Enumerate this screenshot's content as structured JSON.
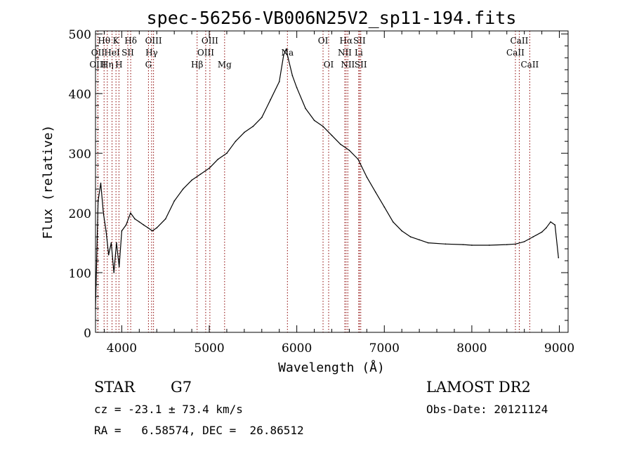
{
  "chart_data": {
    "type": "line",
    "title": "spec-56256-VB006N25V2_sp11-194.fits",
    "xlabel": "Wavelength (Å)",
    "ylabel": "Flux (relative)",
    "xlim": [
      3700,
      9100
    ],
    "ylim": [
      0,
      505
    ],
    "x_ticks": [
      4000,
      5000,
      6000,
      7000,
      8000,
      9000
    ],
    "y_ticks": [
      0,
      100,
      200,
      300,
      400,
      500
    ],
    "grid": false,
    "line_color": "#000000",
    "marker_color": "#8b0000",
    "series": [
      {
        "x": [
          3700,
          3730,
          3760,
          3790,
          3820,
          3850,
          3880,
          3910,
          3940,
          3970,
          4000,
          4050,
          4100,
          4150,
          4200,
          4250,
          4300,
          4350,
          4400,
          4500,
          4600,
          4700,
          4800,
          4900,
          5000,
          5100,
          5200,
          5300,
          5400,
          5500,
          5600,
          5700,
          5800,
          5850,
          5880,
          5900,
          5950,
          6000,
          6100,
          6200,
          6300,
          6400,
          6500,
          6600,
          6700,
          6800,
          6900,
          7000,
          7100,
          7200,
          7300,
          7400,
          7500,
          7700,
          7900,
          8000,
          8200,
          8400,
          8500,
          8600,
          8700,
          8800,
          8850,
          8900,
          8950,
          8990
        ],
        "values": [
          40,
          220,
          250,
          200,
          170,
          130,
          150,
          100,
          150,
          110,
          170,
          180,
          200,
          190,
          185,
          180,
          175,
          170,
          175,
          190,
          220,
          240,
          255,
          265,
          275,
          290,
          300,
          320,
          335,
          345,
          360,
          390,
          420,
          465,
          475,
          460,
          430,
          410,
          375,
          355,
          345,
          330,
          315,
          305,
          290,
          260,
          235,
          210,
          185,
          170,
          160,
          155,
          150,
          148,
          147,
          146,
          146,
          147,
          148,
          152,
          160,
          168,
          175,
          185,
          180,
          125
        ]
      }
    ],
    "markers": [
      {
        "label": "Hθ",
        "x": 3798,
        "row": 1
      },
      {
        "label": "OII",
        "x": 3727,
        "row": 2
      },
      {
        "label": "OIII",
        "x": 3727,
        "row": 3
      },
      {
        "label": "K",
        "x": 3934,
        "row": 1
      },
      {
        "label": "HeI",
        "x": 3889,
        "row": 2
      },
      {
        "label": "Hη",
        "x": 3835,
        "row": 3
      },
      {
        "label": "Hδ",
        "x": 4102,
        "row": 1
      },
      {
        "label": "SII",
        "x": 4069,
        "row": 2
      },
      {
        "label": "H",
        "x": 3968,
        "row": 3
      },
      {
        "label": "OIII",
        "x": 4363,
        "row": 1
      },
      {
        "label": "Hγ",
        "x": 4341,
        "row": 2
      },
      {
        "label": "G",
        "x": 4305,
        "row": 3
      },
      {
        "label": "OIII",
        "x": 5007,
        "row": 1
      },
      {
        "label": "OIII",
        "x": 4959,
        "row": 2
      },
      {
        "label": "Hβ",
        "x": 4861,
        "row": 3
      },
      {
        "label": "Mg",
        "x": 5175,
        "row": 3
      },
      {
        "label": "Na",
        "x": 5893,
        "row": 2
      },
      {
        "label": "OI",
        "x": 6300,
        "row": 1
      },
      {
        "label": "OI",
        "x": 6364,
        "row": 3
      },
      {
        "label": "Hα",
        "x": 6563,
        "row": 1
      },
      {
        "label": "SII",
        "x": 6716,
        "row": 1
      },
      {
        "label": "NII",
        "x": 6548,
        "row": 2
      },
      {
        "label": "Li",
        "x": 6708,
        "row": 2
      },
      {
        "label": "NII",
        "x": 6583,
        "row": 3
      },
      {
        "label": "SII",
        "x": 6731,
        "row": 3
      },
      {
        "label": "CaII",
        "x": 8542,
        "row": 1
      },
      {
        "label": "CaII",
        "x": 8498,
        "row": 2
      },
      {
        "label": "CaII",
        "x": 8662,
        "row": 3
      }
    ]
  },
  "footer": {
    "object_class": "STAR",
    "subclass": "G7",
    "survey": "LAMOST DR2",
    "cz_line": "cz = -23.1 ± 73.4 km/s",
    "obs_date": "Obs-Date: 20121124",
    "coords_line": "RA =   6.58574, DEC =  26.86512"
  }
}
